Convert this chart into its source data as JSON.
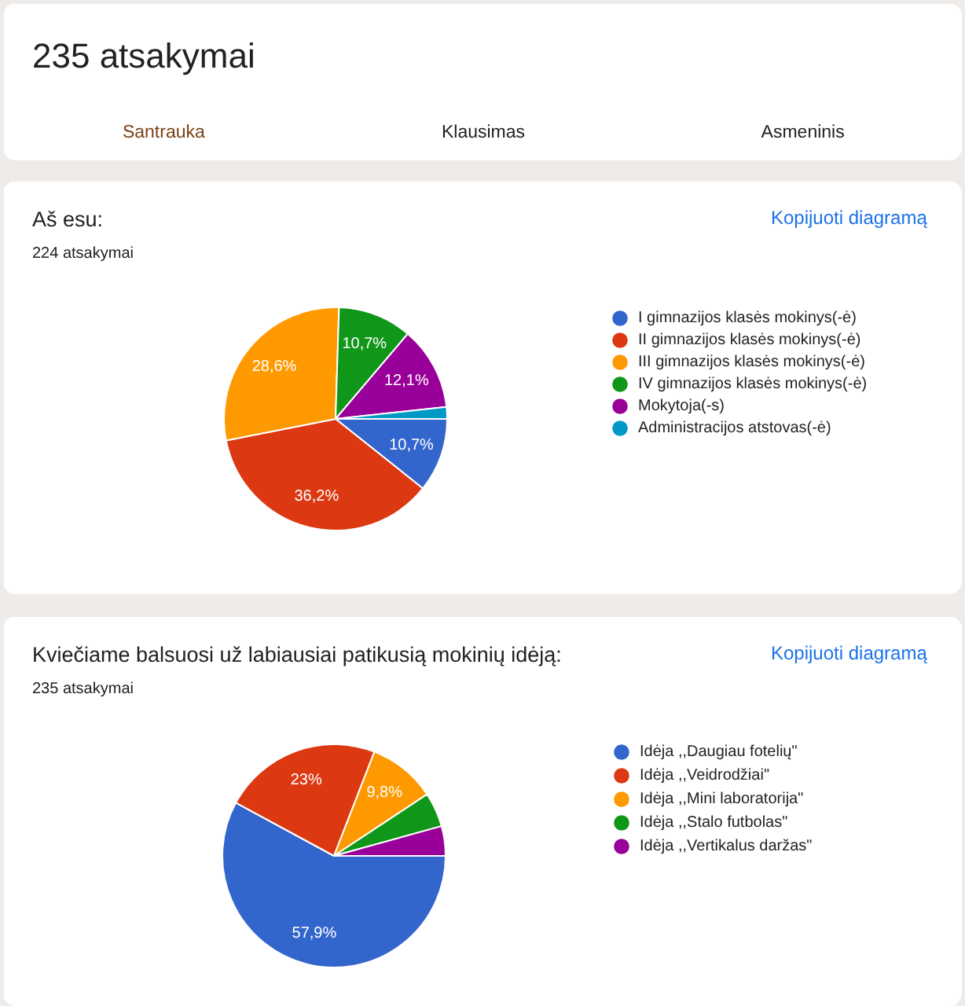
{
  "chart_data": [
    {
      "type": "other",
      "title": "235 atsakymai",
      "annotations": [
        "Santrauka",
        "Klausimas",
        "Asmeninis"
      ]
    },
    {
      "type": "pie",
      "title": "Aš esu:",
      "subtitle": "224 atsakymai",
      "annotations": [
        "Kopijuoti diagramą"
      ],
      "categories": [
        "I gimnazijos klasės mokinys(-ė)",
        "II gimnazijos klasės mokinys(-ė)",
        "III gimnazijos klasės mokinys(-ė)",
        "IV gimnazijos klasės mokinys(-ė)",
        "Mokytoja(-s)",
        "Administracijos atstovas(-ė)"
      ],
      "values": [
        10.7,
        36.2,
        28.6,
        10.7,
        12.1,
        1.7
      ],
      "colors": [
        "#3366cc",
        "#dc3912",
        "#ff9900",
        "#109618",
        "#990099",
        "#0099c6"
      ],
      "value_labels": [
        "10,7%",
        "36,2%",
        "28,6%",
        "10,7%",
        "12,1%",
        null
      ],
      "legend": "right"
    },
    {
      "type": "pie",
      "title": "Kviečiame balsuosi už labiausiai patikusią mokinių idėją:",
      "subtitle": "235 atsakymai",
      "annotations": [
        "Kopijuoti diagramą"
      ],
      "categories": [
        "Idėja ,,Daugiau fotelių\"",
        "Idėja ,,Veidrodžiai\"",
        "Idėja ,,Mini laboratorija\"",
        "Idėja ,,Stalo futbolas\"",
        "Idėja ,,Vertikalus daržas\""
      ],
      "values": [
        57.9,
        23,
        9.8,
        5.0,
        4.3
      ],
      "colors": [
        "#3366cc",
        "#dc3912",
        "#ff9900",
        "#109618",
        "#990099"
      ],
      "value_labels": [
        "57,9%",
        "23%",
        "9,8%",
        null,
        null
      ],
      "legend": "right"
    }
  ]
}
